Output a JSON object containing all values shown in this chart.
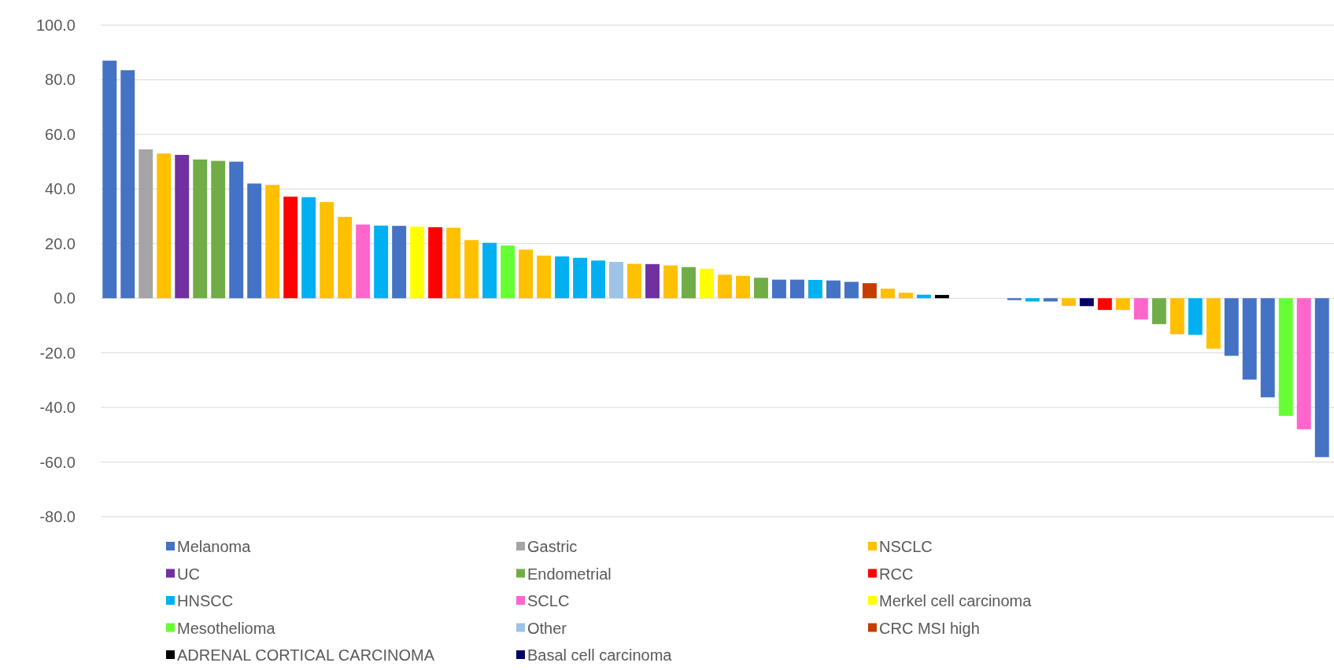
{
  "chart_data": {
    "type": "bar",
    "categories": [
      null,
      null,
      null,
      null,
      null,
      null,
      null,
      null,
      null,
      null,
      null,
      null,
      null,
      null,
      null,
      null,
      null,
      null,
      null,
      null,
      null,
      null,
      null,
      null,
      null,
      null,
      null,
      null,
      null,
      null,
      null,
      null,
      null,
      null,
      null,
      null,
      null,
      null,
      null,
      null,
      null,
      null,
      null,
      null,
      null,
      null,
      null,
      null,
      null,
      null,
      null,
      null,
      null,
      null,
      null,
      null,
      null,
      null,
      null,
      null,
      null,
      null,
      null,
      null,
      null,
      null,
      null,
      null
    ],
    "ylim": [
      -80,
      100
    ],
    "yticks": [
      {
        "value": -80,
        "label": "-80.0"
      },
      {
        "value": -60,
        "label": "-60.0"
      },
      {
        "value": -40,
        "label": "-40.0"
      },
      {
        "value": -20,
        "label": "-20.0"
      },
      {
        "value": 0,
        "label": "0.0"
      },
      {
        "value": 20,
        "label": "20.0"
      },
      {
        "value": 40,
        "label": "40.0"
      },
      {
        "value": 60,
        "label": "60.0"
      },
      {
        "value": 80,
        "label": "80.0"
      },
      {
        "value": 100,
        "label": "100.0"
      }
    ],
    "grid": "y",
    "legend": "bottom",
    "series": [
      {
        "name": "Melanoma",
        "color": "#4472c4",
        "values": [
          87,
          83.5,
          null,
          null,
          null,
          null,
          null,
          50,
          42,
          null,
          null,
          null,
          null,
          null,
          null,
          null,
          26.5,
          null,
          null,
          null,
          null,
          null,
          null,
          null,
          null,
          null,
          null,
          null,
          null,
          null,
          null,
          null,
          null,
          null,
          null,
          null,
          null,
          6.8,
          6.8,
          null,
          6.5,
          6,
          null,
          null,
          null,
          null,
          null,
          null,
          null,
          null,
          -0.7,
          null,
          -1.2,
          null,
          null,
          null,
          null,
          null,
          null,
          null,
          null,
          null,
          -21.1,
          -29.8,
          -36.3,
          null,
          null,
          -58.2
        ]
      },
      {
        "name": "Gastric",
        "color": "#a5a5a5",
        "values": [
          null,
          null,
          54.5,
          null,
          null,
          null,
          null,
          null,
          null,
          null,
          null,
          null,
          null,
          null,
          null,
          null,
          null,
          null,
          null,
          null,
          null,
          null,
          null,
          null,
          null,
          null,
          null,
          null,
          null,
          null,
          null,
          null,
          null,
          null,
          null,
          null,
          null,
          null,
          null,
          null,
          null,
          null,
          null,
          null,
          null,
          null,
          null,
          null,
          null,
          null,
          null,
          null,
          null,
          null,
          null,
          null,
          null,
          null,
          null,
          null,
          null,
          null,
          null,
          null,
          null,
          null,
          null,
          null
        ]
      },
      {
        "name": "NSCLC",
        "color": "#ffc000",
        "values": [
          null,
          null,
          null,
          53,
          null,
          null,
          null,
          null,
          null,
          41.5,
          null,
          null,
          35.2,
          29.8,
          null,
          null,
          null,
          null,
          null,
          25.8,
          21.3,
          null,
          null,
          17.8,
          15.6,
          null,
          null,
          null,
          null,
          12.6,
          null,
          12,
          null,
          null,
          8.6,
          8.2,
          null,
          null,
          null,
          null,
          null,
          null,
          null,
          3.5,
          2,
          null,
          null,
          null,
          null,
          null,
          null,
          null,
          null,
          -2.8,
          null,
          null,
          -4.3,
          null,
          null,
          -13.2,
          null,
          -18.5,
          null,
          null,
          null,
          null,
          null,
          null
        ]
      },
      {
        "name": "UC",
        "color": "#7030a0",
        "values": [
          null,
          null,
          null,
          null,
          52.5,
          null,
          null,
          null,
          null,
          null,
          null,
          null,
          null,
          null,
          null,
          null,
          null,
          null,
          null,
          null,
          null,
          null,
          null,
          null,
          null,
          null,
          null,
          null,
          null,
          null,
          12.5,
          null,
          null,
          null,
          null,
          null,
          null,
          null,
          null,
          null,
          null,
          null,
          null,
          null,
          null,
          null,
          null,
          null,
          null,
          null,
          null,
          null,
          null,
          null,
          null,
          null,
          null,
          null,
          null,
          null,
          null,
          null,
          null,
          null,
          null,
          null,
          null,
          null
        ]
      },
      {
        "name": "Endometrial",
        "color": "#70ad47",
        "values": [
          null,
          null,
          null,
          null,
          null,
          50.8,
          50.3,
          null,
          null,
          null,
          null,
          null,
          null,
          null,
          null,
          null,
          null,
          null,
          null,
          null,
          null,
          null,
          null,
          null,
          null,
          null,
          null,
          null,
          null,
          null,
          null,
          null,
          11.4,
          null,
          null,
          null,
          7.5,
          null,
          null,
          null,
          null,
          null,
          null,
          null,
          null,
          null,
          null,
          null,
          null,
          null,
          null,
          null,
          null,
          null,
          null,
          null,
          null,
          null,
          -9.5,
          null,
          null,
          null,
          null,
          null,
          null,
          null,
          null,
          null
        ]
      },
      {
        "name": "RCC",
        "color": "#ff0000",
        "values": [
          null,
          null,
          null,
          null,
          null,
          null,
          null,
          null,
          null,
          null,
          37.2,
          null,
          null,
          null,
          null,
          null,
          null,
          null,
          26,
          null,
          null,
          null,
          null,
          null,
          null,
          null,
          null,
          null,
          null,
          null,
          null,
          null,
          null,
          null,
          null,
          null,
          null,
          null,
          null,
          null,
          null,
          null,
          null,
          null,
          null,
          null,
          null,
          null,
          null,
          null,
          null,
          null,
          null,
          null,
          null,
          -4.3,
          null,
          null,
          null,
          null,
          null,
          null,
          null,
          null,
          null,
          null,
          null,
          null
        ]
      },
      {
        "name": "HNSCC",
        "color": "#00b0f0",
        "values": [
          null,
          null,
          null,
          null,
          null,
          null,
          null,
          null,
          null,
          null,
          null,
          37,
          null,
          null,
          null,
          26.6,
          null,
          null,
          null,
          null,
          null,
          20.3,
          null,
          null,
          null,
          15.3,
          14.8,
          13.8,
          null,
          null,
          null,
          null,
          null,
          null,
          null,
          null,
          null,
          null,
          null,
          6.7,
          null,
          null,
          null,
          null,
          null,
          1.3,
          null,
          null,
          null,
          null,
          null,
          -1.2,
          null,
          null,
          null,
          null,
          null,
          null,
          null,
          null,
          -13.4,
          null,
          null,
          null,
          null,
          null,
          null,
          null
        ]
      },
      {
        "name": "SCLC",
        "color": "#ff66cc",
        "values": [
          null,
          null,
          null,
          null,
          null,
          null,
          null,
          null,
          null,
          null,
          null,
          null,
          null,
          null,
          27,
          null,
          null,
          null,
          null,
          null,
          null,
          null,
          null,
          null,
          null,
          null,
          null,
          null,
          null,
          null,
          null,
          null,
          null,
          null,
          null,
          null,
          null,
          null,
          null,
          null,
          null,
          null,
          null,
          null,
          null,
          null,
          null,
          null,
          null,
          null,
          null,
          null,
          null,
          null,
          null,
          null,
          null,
          -7.8,
          null,
          null,
          null,
          null,
          null,
          null,
          null,
          null,
          -48,
          null
        ]
      },
      {
        "name": "Merkel cell carcinoma",
        "color": "#ffff00",
        "values": [
          null,
          null,
          null,
          null,
          null,
          null,
          null,
          null,
          null,
          null,
          null,
          null,
          null,
          null,
          null,
          null,
          null,
          26.2,
          null,
          null,
          null,
          null,
          null,
          null,
          null,
          null,
          null,
          null,
          null,
          null,
          null,
          null,
          null,
          10.8,
          null,
          null,
          null,
          null,
          null,
          null,
          null,
          null,
          null,
          null,
          null,
          null,
          null,
          null,
          null,
          null,
          null,
          null,
          null,
          null,
          null,
          null,
          null,
          null,
          null,
          null,
          null,
          null,
          null,
          null,
          null,
          null,
          null,
          null
        ]
      },
      {
        "name": "Mesothelioma",
        "color": "#66ff33",
        "values": [
          null,
          null,
          null,
          null,
          null,
          null,
          null,
          null,
          null,
          null,
          null,
          null,
          null,
          null,
          null,
          null,
          null,
          null,
          null,
          null,
          null,
          null,
          19.3,
          null,
          null,
          null,
          null,
          null,
          null,
          null,
          null,
          null,
          null,
          null,
          null,
          null,
          null,
          null,
          null,
          null,
          null,
          null,
          null,
          null,
          null,
          null,
          null,
          null,
          null,
          null,
          null,
          null,
          null,
          null,
          null,
          null,
          null,
          null,
          null,
          null,
          null,
          null,
          null,
          null,
          null,
          -43.1,
          null,
          null
        ]
      },
      {
        "name": "Other",
        "color": "#9dc3e6",
        "values": [
          null,
          null,
          null,
          null,
          null,
          null,
          null,
          null,
          null,
          null,
          null,
          null,
          null,
          null,
          null,
          null,
          null,
          null,
          null,
          null,
          null,
          null,
          null,
          null,
          null,
          null,
          null,
          null,
          13.3,
          null,
          null,
          null,
          null,
          null,
          null,
          null,
          null,
          null,
          null,
          null,
          null,
          null,
          null,
          null,
          null,
          null,
          null,
          null,
          null,
          null,
          null,
          null,
          null,
          null,
          null,
          null,
          null,
          null,
          null,
          null,
          null,
          null,
          null,
          null,
          null,
          null,
          null,
          null
        ]
      },
      {
        "name": "CRC MSI high",
        "color": "#c43e00",
        "values": [
          null,
          null,
          null,
          null,
          null,
          null,
          null,
          null,
          null,
          null,
          null,
          null,
          null,
          null,
          null,
          null,
          null,
          null,
          null,
          null,
          null,
          null,
          null,
          null,
          null,
          null,
          null,
          null,
          null,
          null,
          null,
          null,
          null,
          null,
          null,
          null,
          null,
          null,
          null,
          null,
          null,
          null,
          5.5,
          null,
          null,
          null,
          null,
          null,
          null,
          null,
          null,
          null,
          null,
          null,
          null,
          null,
          null,
          null,
          null,
          null,
          null,
          null,
          null,
          null,
          null,
          null,
          null,
          null
        ]
      },
      {
        "name": "ADRENAL CORTICAL CARCINOMA",
        "color": "#000000",
        "values": [
          null,
          null,
          null,
          null,
          null,
          null,
          null,
          null,
          null,
          null,
          null,
          null,
          null,
          null,
          null,
          null,
          null,
          null,
          null,
          null,
          null,
          null,
          null,
          null,
          null,
          null,
          null,
          null,
          null,
          null,
          null,
          null,
          null,
          null,
          null,
          null,
          null,
          null,
          null,
          null,
          null,
          null,
          null,
          null,
          null,
          null,
          1.2,
          null,
          null,
          null,
          null,
          null,
          null,
          null,
          null,
          null,
          null,
          null,
          null,
          null,
          null,
          null,
          null,
          null,
          null,
          null,
          null,
          null
        ]
      },
      {
        "name": "Basal cell carcinoma",
        "color": "#000066",
        "values": [
          null,
          null,
          null,
          null,
          null,
          null,
          null,
          null,
          null,
          null,
          null,
          null,
          null,
          null,
          null,
          null,
          null,
          null,
          null,
          null,
          null,
          null,
          null,
          null,
          null,
          null,
          null,
          null,
          null,
          null,
          null,
          null,
          null,
          null,
          null,
          null,
          null,
          null,
          null,
          null,
          null,
          null,
          null,
          null,
          null,
          null,
          null,
          null,
          null,
          null,
          null,
          null,
          null,
          null,
          -2.9,
          null,
          null,
          null,
          null,
          null,
          null,
          null,
          null,
          null,
          null,
          null,
          null,
          null
        ]
      }
    ]
  }
}
